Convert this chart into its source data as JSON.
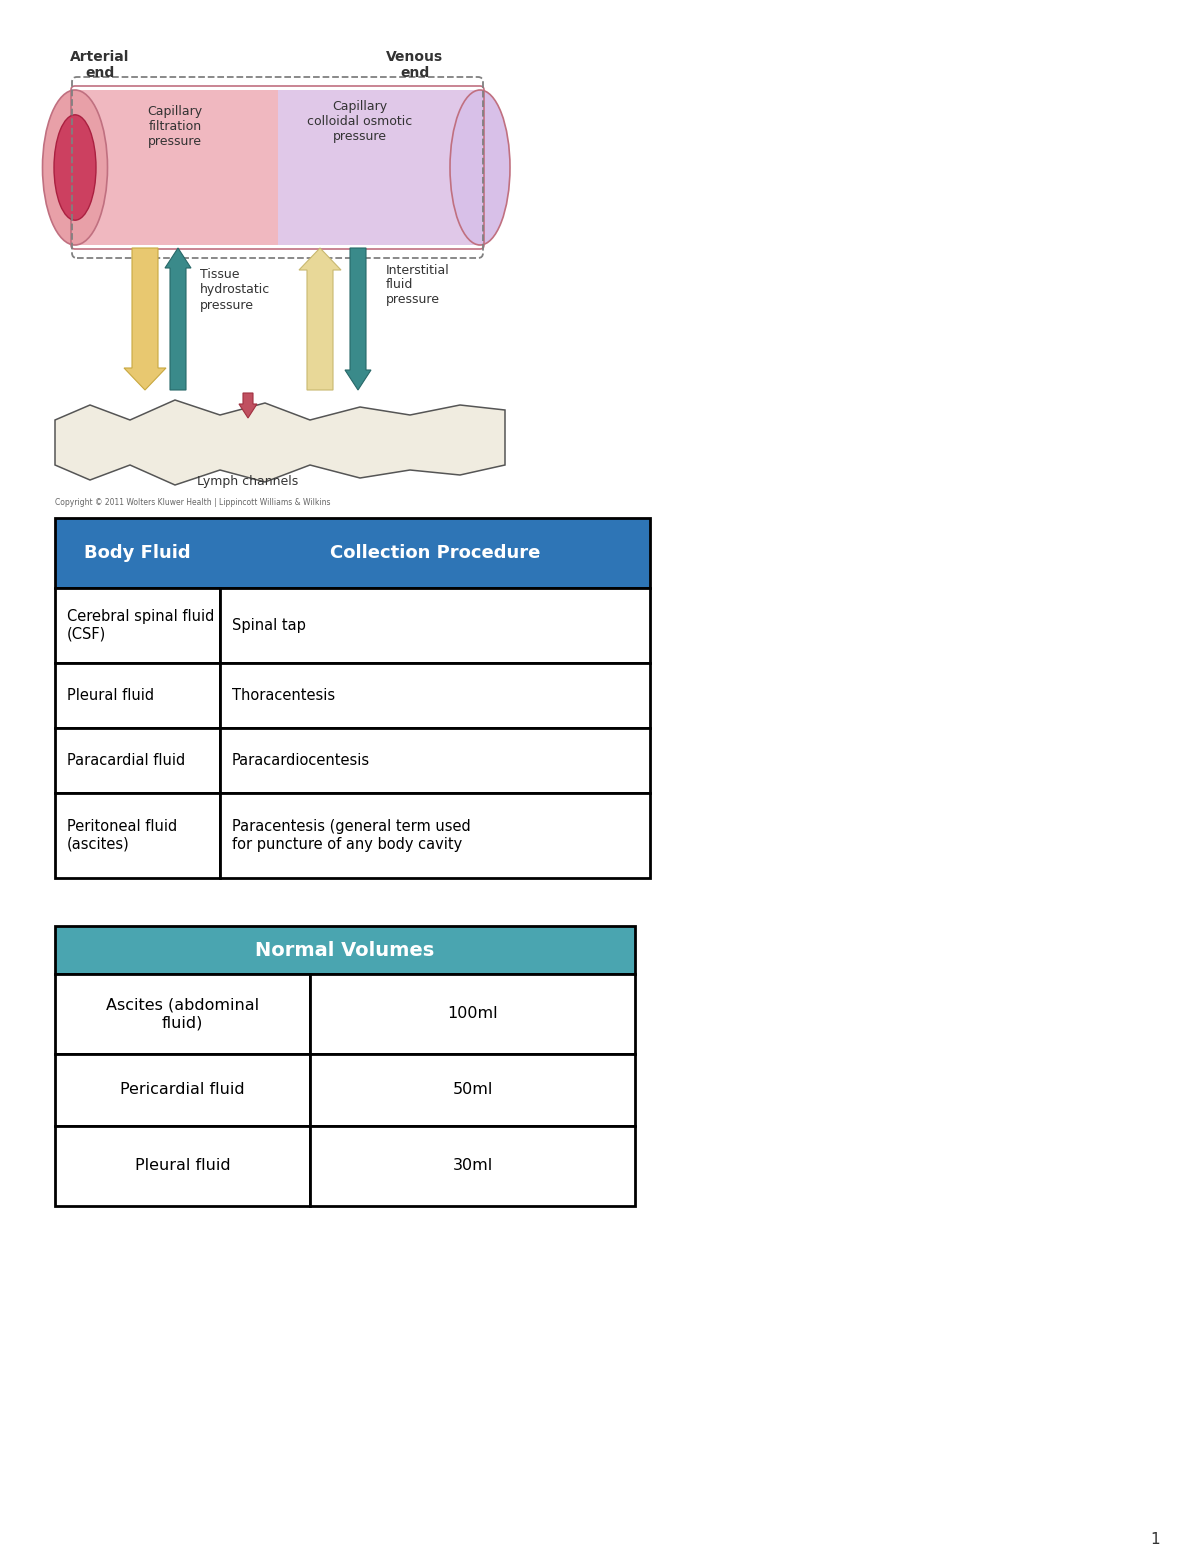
{
  "bg_color": "#ffffff",
  "page_num": "1",
  "copyright_text": "Copyright © 2011 Wolters Kluwer Health | Lippincott Williams & Wilkins",
  "diagram": {
    "arterial_label": "Arterial\nend",
    "venous_label": "Venous\nend",
    "cap_filtration_label": "Capillary\nfiltration\npressure",
    "cap_osmotic_label": "Capillary\ncolloidal osmotic\npressure",
    "tissue_hydro_label": "Tissue\nhydrostatic\npressure",
    "interstitial_label": "Interstitial\nfluid\npressure",
    "lymph_label": "Lymph channels",
    "cap_body_color": "#f0b8c0",
    "cap_right_color": "#d8c0e0",
    "cap_left_outer_color": "#e89090",
    "cap_left_inner_color": "#c84060",
    "arrow_down_color": "#e8c870",
    "arrow_up_teal_color": "#3a8a8a",
    "arrow_up_cream_color": "#e8d898",
    "arrow_down_teal_color": "#3a8a8a",
    "arrow_red_color": "#c05060",
    "lymph_bg": "#f5eed5"
  },
  "table1": {
    "header": [
      "Body Fluid",
      "Collection Procedure"
    ],
    "header_bg": "#2e75b6",
    "header_text_color": "#ffffff",
    "rows": [
      [
        "Cerebral spinal fluid\n(CSF)",
        "Spinal tap"
      ],
      [
        "Pleural fluid",
        "Thoracentesis"
      ],
      [
        "Paracardial fluid",
        "Paracardiocentesis"
      ],
      [
        "Peritoneal fluid\n(ascites)",
        "Paracentesis (general term used\nfor puncture of any body cavity"
      ]
    ],
    "row_bg": "#ffffff",
    "row_text_color": "#000000",
    "border_color": "#000000"
  },
  "table2": {
    "header": [
      "Normal Volumes"
    ],
    "header_bg": "#4aa5b0",
    "header_text_color": "#ffffff",
    "rows": [
      [
        "Ascites (abdominal\nfluid)",
        "100ml"
      ],
      [
        "Pericardial fluid",
        "50ml"
      ],
      [
        "Pleural fluid",
        "30ml"
      ]
    ],
    "row_bg": "#ffffff",
    "row_text_color": "#000000",
    "border_color": "#000000"
  }
}
